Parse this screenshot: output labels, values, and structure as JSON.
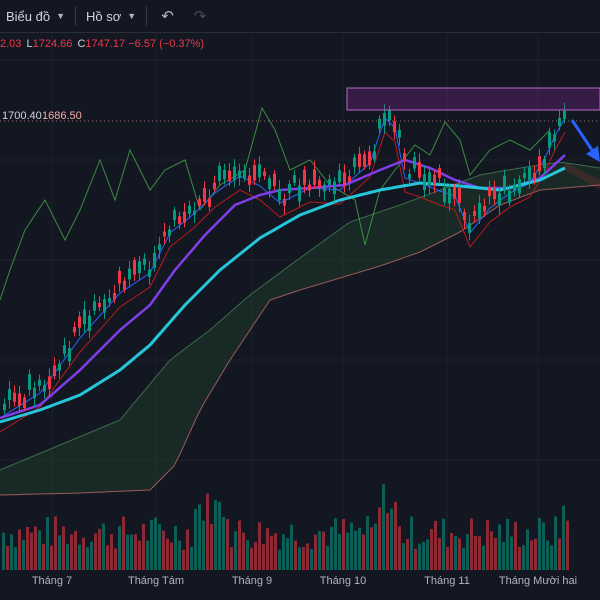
{
  "toolbar": {
    "chart_label": "Biểu đồ",
    "profile_label": "Hồ sơ",
    "undo_icon": "undo-icon",
    "redo_icon": "redo-icon"
  },
  "ohlc": {
    "open_value": "2.03",
    "low_key": "L",
    "low_value": "1724.66",
    "close_key": "C",
    "close_value": "1747.17",
    "change": "−6.57 (−0.37%)"
  },
  "price_labels": {
    "left": "1700.40",
    "right": "1686.50"
  },
  "x_axis": [
    "Tháng 7",
    "Tháng Tám",
    "Tháng 9",
    "Tháng 10",
    "Tháng 11",
    "Tháng Mười hai"
  ],
  "colors": {
    "background": "#131722",
    "up": "#089981",
    "down": "#f23645",
    "ma_fast": "#7e3fe8",
    "ma_slow": "#26c6da",
    "highlight_box": "#9c27b0",
    "arrow": "#2962ff"
  }
}
